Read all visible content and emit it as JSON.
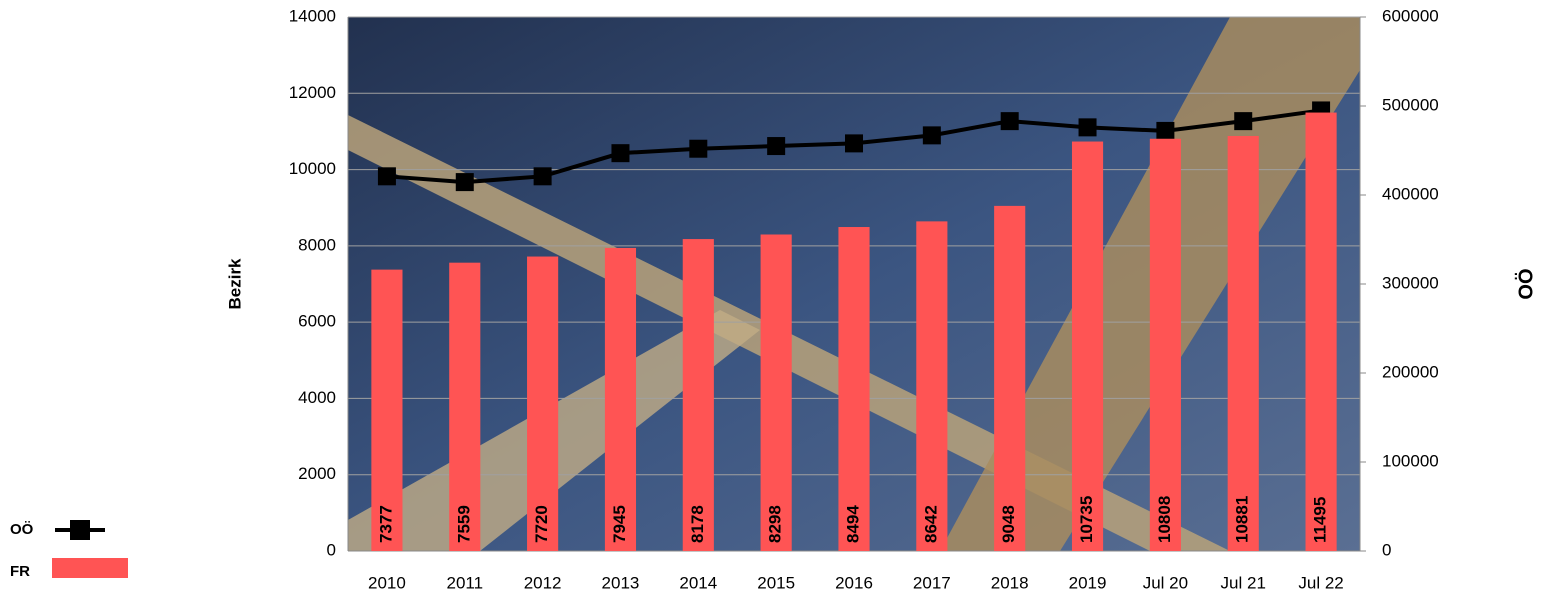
{
  "chart_data": {
    "type": "bar",
    "ylabel": "Bezirk",
    "y2label": "OÖ",
    "categories": [
      "2010",
      "2011",
      "2012",
      "2013",
      "2014",
      "2015",
      "2016",
      "2017",
      "2018",
      "2019",
      "Jul 20",
      "Jul 21",
      "Jul 22"
    ],
    "series": [
      {
        "name": "OÖ",
        "type": "line",
        "axis": "y2",
        "color": "#000000",
        "values": [
          421000,
          414500,
          421000,
          447000,
          452000,
          455000,
          458000,
          467000,
          483000,
          476000,
          472000,
          483000,
          495000
        ]
      },
      {
        "name": "FR",
        "type": "bar",
        "color": "#ff5454",
        "values": [
          7377,
          7559,
          7720,
          7945,
          8178,
          8298,
          8494,
          8642,
          9048,
          10735,
          10808,
          10881,
          11495
        ]
      }
    ],
    "ylim": [
      0,
      14000
    ],
    "yticks": [
      0,
      2000,
      4000,
      6000,
      8000,
      10000,
      12000,
      14000
    ],
    "y2lim": [
      0,
      600000
    ],
    "y2ticks": [
      0,
      100000,
      200000,
      300000,
      400000,
      500000,
      600000
    ],
    "grid": true,
    "legend": "bottom-left"
  }
}
